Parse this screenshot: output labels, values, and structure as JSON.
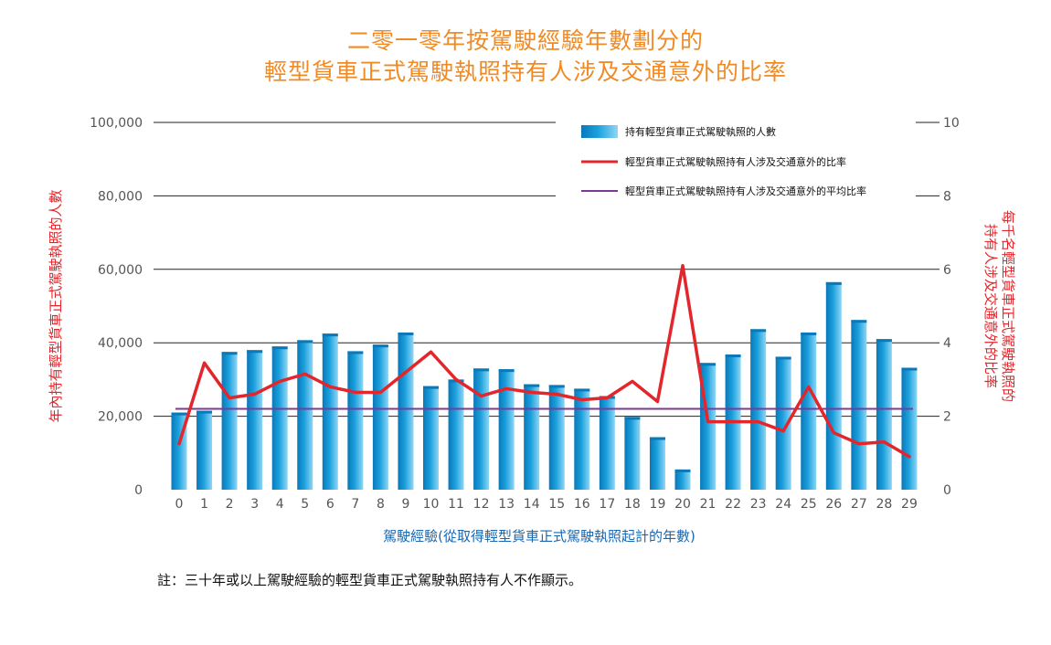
{
  "colors": {
    "title": "#f08a24",
    "bar": "#1aa0dd",
    "bar_light": "#8fd6f5",
    "bar_dark": "#0b78b8",
    "rate_line": "#e3262b",
    "avg_line": "#7b3a96",
    "left_axis_label": "#e3262b",
    "right_axis_label": "#e3262b",
    "x_label": "#1a67b1"
  },
  "title_line1": "二零一零年按駕駛經驗年數劃分的",
  "title_line2": "輕型貨車正式駕駛執照持有人涉及交通意外的比率",
  "note": "註：三十年或以上駕駛經驗的輕型貨車正式駕駛執照持有人不作顯示。",
  "chart_data": {
    "type": "bar",
    "xlabel": "駕駛經驗(從取得輕型貨車正式駕駛執照起計的年數)",
    "ylabel_left": "年內持有輕型貨車正式駕駛執照的人數",
    "ylabel_right_line1": "每千名輕型貨車正式駕駛執照的",
    "ylabel_right_line2": "持有人涉及交通意外的比率",
    "y_left_ticks": [
      "0",
      "20,000",
      "40,000",
      "60,000",
      "80,000",
      "100,000"
    ],
    "y_right_ticks": [
      "0",
      "2",
      "4",
      "6",
      "8",
      "10"
    ],
    "ylim_left": [
      0,
      100000
    ],
    "ylim_right": [
      0,
      10
    ],
    "grid": true,
    "legend_position": "top-right",
    "categories": [
      "0",
      "1",
      "2",
      "3",
      "4",
      "5",
      "6",
      "7",
      "8",
      "9",
      "10",
      "11",
      "12",
      "13",
      "14",
      "15",
      "16",
      "17",
      "18",
      "19",
      "20",
      "21",
      "22",
      "23",
      "24",
      "25",
      "26",
      "27",
      "28",
      "29"
    ],
    "series": [
      {
        "name": "持有輕型貨車正式駕駛執照的人數",
        "type": "bar",
        "axis": "left",
        "values": [
          21000,
          21500,
          37500,
          38000,
          39000,
          40700,
          42500,
          37700,
          39500,
          42800,
          28200,
          30000,
          33000,
          32800,
          28700,
          28500,
          27500,
          25500,
          19800,
          14300,
          5500,
          34500,
          36800,
          43700,
          36200,
          42800,
          56500,
          46200,
          41000,
          33200
        ]
      },
      {
        "name": "輕型貨車正式駕駛執照持有人涉及交通意外的比率",
        "type": "line",
        "axis": "right",
        "values": [
          1.25,
          3.45,
          2.5,
          2.6,
          2.95,
          3.15,
          2.8,
          2.65,
          2.65,
          3.2,
          3.75,
          3.0,
          2.55,
          2.75,
          2.65,
          2.6,
          2.45,
          2.5,
          2.95,
          2.4,
          6.1,
          1.85,
          1.85,
          1.85,
          1.6,
          2.8,
          1.55,
          1.25,
          1.3,
          0.9
        ]
      },
      {
        "name": "輕型貨車正式駕駛執照持有人涉及交通意外的平均比率",
        "type": "line",
        "axis": "right",
        "values": [
          2.2,
          2.2,
          2.2,
          2.2,
          2.2,
          2.2,
          2.2,
          2.2,
          2.2,
          2.2,
          2.2,
          2.2,
          2.2,
          2.2,
          2.2,
          2.2,
          2.2,
          2.2,
          2.2,
          2.2,
          2.2,
          2.2,
          2.2,
          2.2,
          2.2,
          2.2,
          2.2,
          2.2,
          2.2,
          2.2
        ]
      }
    ]
  }
}
